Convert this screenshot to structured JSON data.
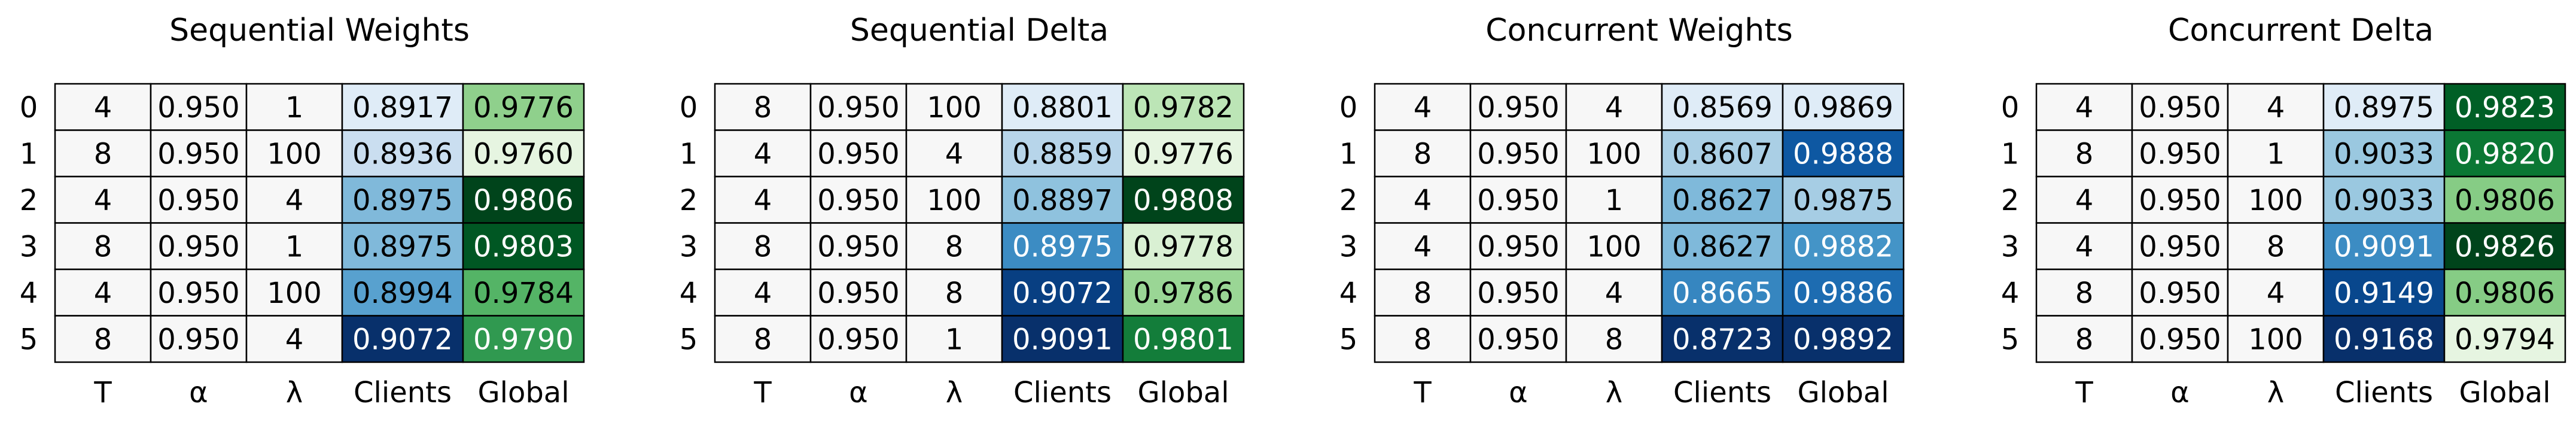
{
  "colors": {
    "neutral_cell": "#f7f7f7",
    "grid_line": "#000000",
    "clients_colormap": "Blues",
    "global_colormap_sequential": "Greens",
    "global_colormap_concurrent": "Blues",
    "global_colormap_concurrent_delta": "Greens"
  },
  "chart_data": [
    {
      "type": "table",
      "title": "Sequential Weights",
      "columns": [
        "T",
        "α",
        "λ",
        "Clients",
        "Global"
      ],
      "row_labels": [
        "0",
        "1",
        "2",
        "3",
        "4",
        "5"
      ],
      "rows": [
        [
          "4",
          "0.950",
          "1",
          "0.8917",
          "0.9776"
        ],
        [
          "8",
          "0.950",
          "100",
          "0.8936",
          "0.9760"
        ],
        [
          "4",
          "0.950",
          "4",
          "0.8975",
          "0.9806"
        ],
        [
          "8",
          "0.950",
          "1",
          "0.8975",
          "0.9803"
        ],
        [
          "4",
          "0.950",
          "100",
          "0.8994",
          "0.9784"
        ],
        [
          "8",
          "0.950",
          "4",
          "0.9072",
          "0.9790"
        ]
      ],
      "heat": {
        "Clients": "Blues",
        "Global": "Greens"
      }
    },
    {
      "type": "table",
      "title": "Sequential Delta",
      "columns": [
        "T",
        "α",
        "λ",
        "Clients",
        "Global"
      ],
      "row_labels": [
        "0",
        "1",
        "2",
        "3",
        "4",
        "5"
      ],
      "rows": [
        [
          "8",
          "0.950",
          "100",
          "0.8801",
          "0.9782"
        ],
        [
          "4",
          "0.950",
          "4",
          "0.8859",
          "0.9776"
        ],
        [
          "4",
          "0.950",
          "100",
          "0.8897",
          "0.9808"
        ],
        [
          "8",
          "0.950",
          "8",
          "0.8975",
          "0.9778"
        ],
        [
          "4",
          "0.950",
          "8",
          "0.9072",
          "0.9786"
        ],
        [
          "8",
          "0.950",
          "1",
          "0.9091",
          "0.9801"
        ]
      ],
      "heat": {
        "Clients": "Blues",
        "Global": "Greens"
      }
    },
    {
      "type": "table",
      "title": "Concurrent Weights",
      "columns": [
        "T",
        "α",
        "λ",
        "Clients",
        "Global"
      ],
      "row_labels": [
        "0",
        "1",
        "2",
        "3",
        "4",
        "5"
      ],
      "rows": [
        [
          "4",
          "0.950",
          "4",
          "0.8569",
          "0.9869"
        ],
        [
          "8",
          "0.950",
          "100",
          "0.8607",
          "0.9888"
        ],
        [
          "4",
          "0.950",
          "1",
          "0.8627",
          "0.9875"
        ],
        [
          "4",
          "0.950",
          "100",
          "0.8627",
          "0.9882"
        ],
        [
          "8",
          "0.950",
          "4",
          "0.8665",
          "0.9886"
        ],
        [
          "8",
          "0.950",
          "8",
          "0.8723",
          "0.9892"
        ]
      ],
      "heat": {
        "Clients": "Blues",
        "Global": "Blues"
      }
    },
    {
      "type": "table",
      "title": "Concurrent Delta",
      "columns": [
        "T",
        "α",
        "λ",
        "Clients",
        "Global"
      ],
      "row_labels": [
        "0",
        "1",
        "2",
        "3",
        "4",
        "5"
      ],
      "rows": [
        [
          "4",
          "0.950",
          "4",
          "0.8975",
          "0.9823"
        ],
        [
          "8",
          "0.950",
          "1",
          "0.9033",
          "0.9820"
        ],
        [
          "4",
          "0.950",
          "100",
          "0.9033",
          "0.9806"
        ],
        [
          "4",
          "0.950",
          "8",
          "0.9091",
          "0.9826"
        ],
        [
          "8",
          "0.950",
          "4",
          "0.9149",
          "0.9806"
        ],
        [
          "8",
          "0.950",
          "100",
          "0.9168",
          "0.9794"
        ]
      ],
      "heat": {
        "Clients": "Blues",
        "Global": "Greens"
      }
    }
  ]
}
